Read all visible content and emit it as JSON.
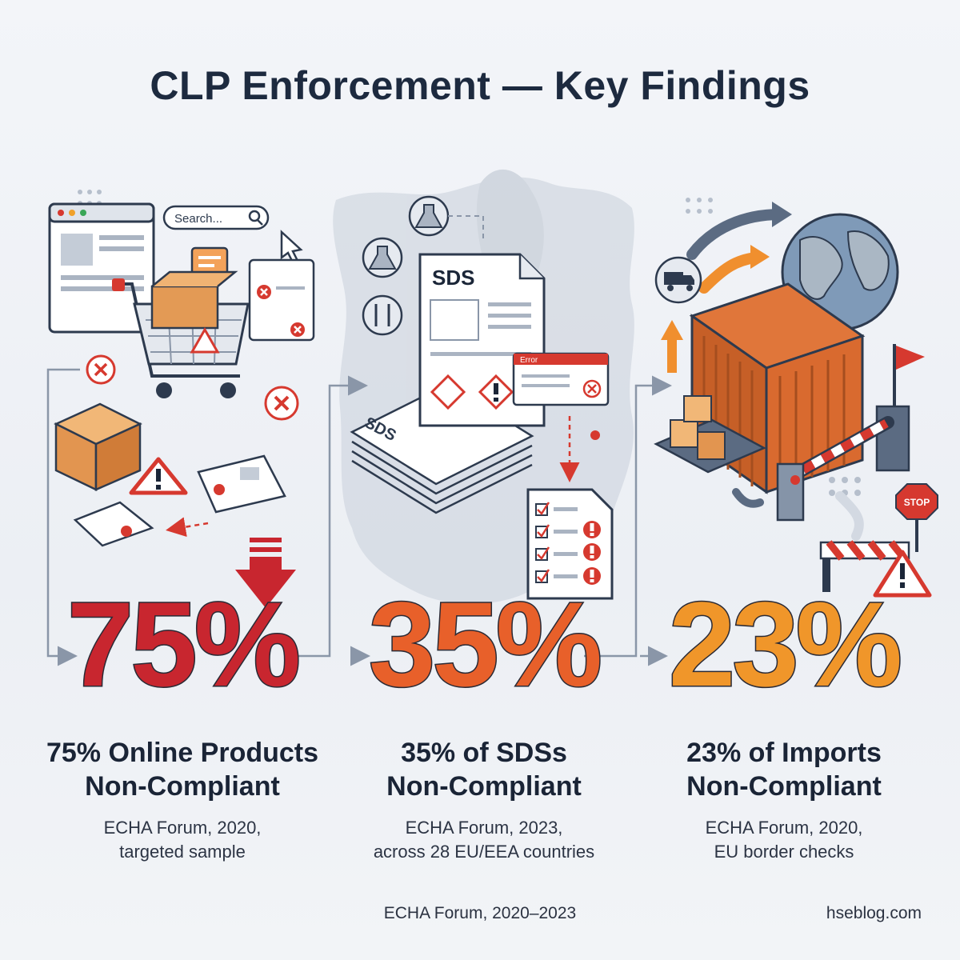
{
  "title": "CLP Enforcement — Key Findings",
  "findings": [
    {
      "value": "75%",
      "headline_line1": "75% Online Products",
      "headline_line2": "Non-Compliant",
      "source_line1": "ECHA Forum, 2020,",
      "source_line2": "targeted sample",
      "color": "#c8262f"
    },
    {
      "value": "35%",
      "headline_line1": "35% of SDSs",
      "headline_line2": "Non-Compliant",
      "source_line1": "ECHA Forum, 2023,",
      "source_line2": "across 28 EU/EEA countries",
      "color": "#e8602a"
    },
    {
      "value": "23%",
      "headline_line1": "23% of Imports",
      "headline_line2": "Non-Compliant",
      "source_line1": "ECHA Forum, 2020,",
      "source_line2": "EU border checks",
      "color": "#f0962a"
    }
  ],
  "illustration": {
    "search_placeholder": "Search...",
    "sds_label": "SDS",
    "error_label": "Error",
    "stop_label": "STOP",
    "icons": [
      "shopping-cart-icon",
      "warning-icon",
      "sds-document-icon",
      "checklist-icon",
      "globe-icon",
      "shipping-container-icon",
      "truck-icon",
      "stop-sign-icon"
    ]
  },
  "footer": {
    "source": "ECHA Forum, 2020–2023",
    "brand": "hseblog.com"
  }
}
